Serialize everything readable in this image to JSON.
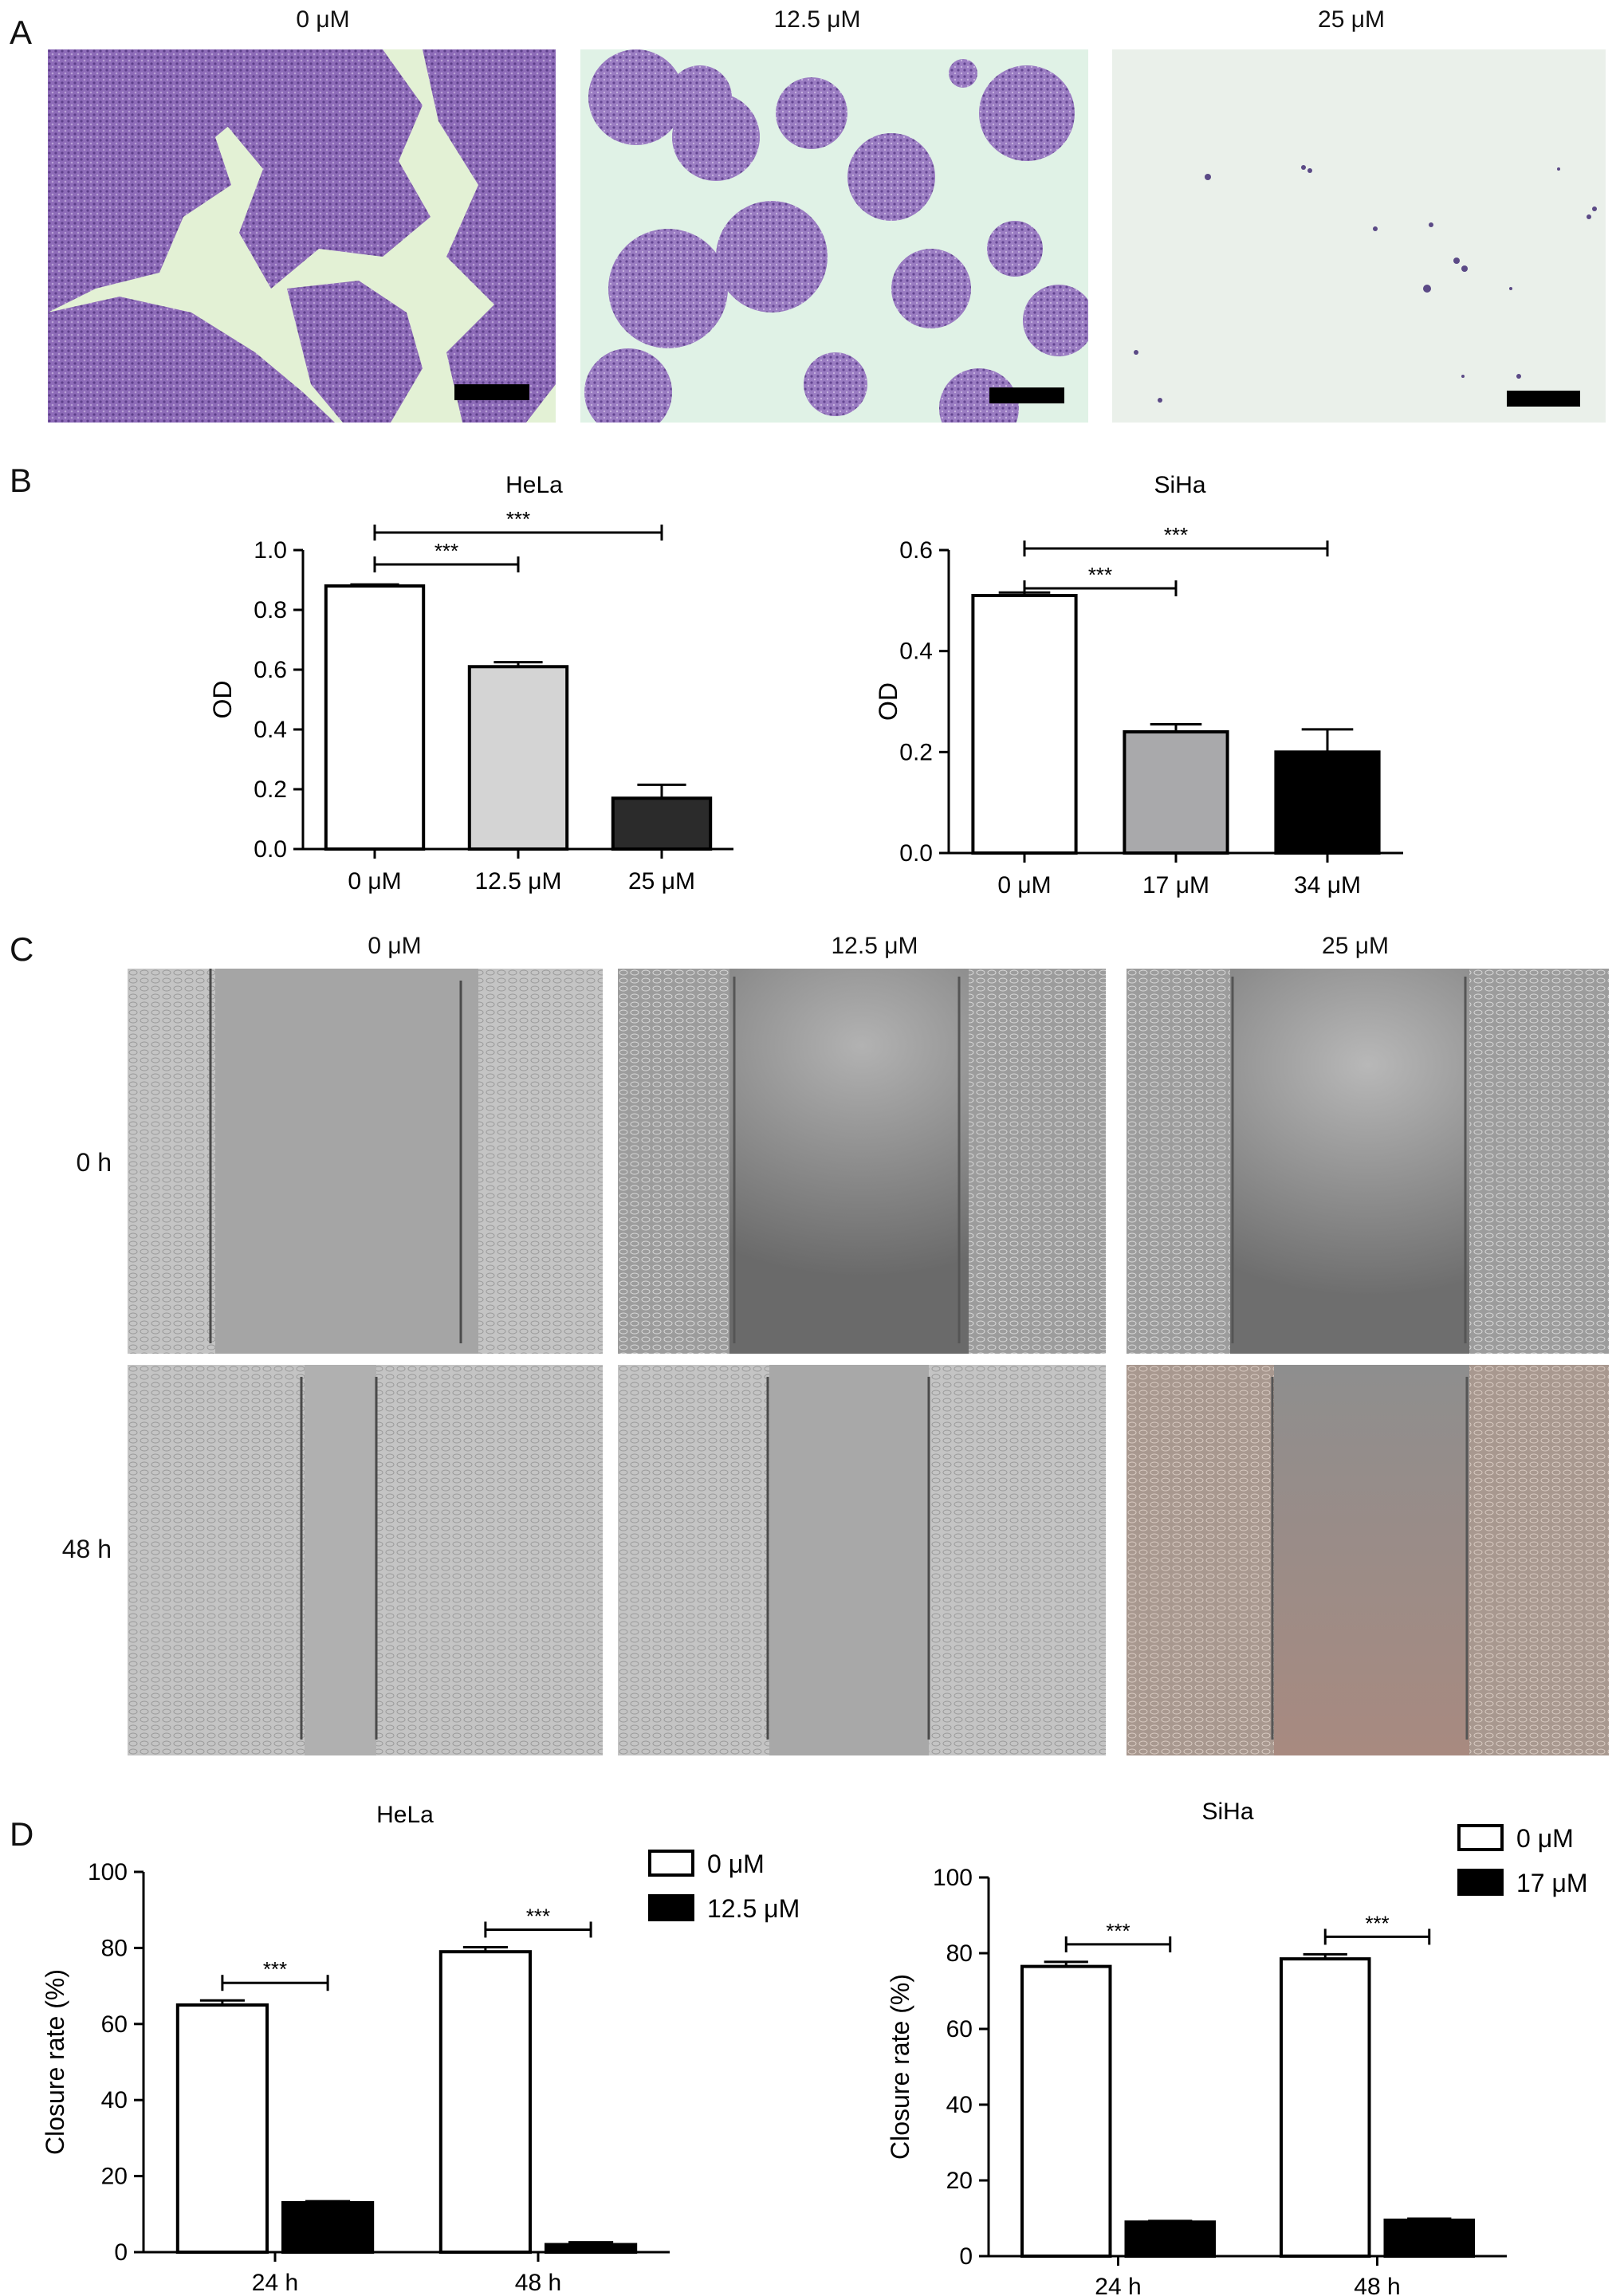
{
  "figure": {
    "panels": {
      "A": "A",
      "B": "B",
      "C": "C",
      "D": "D"
    },
    "panelA": {
      "column_titles": [
        "0 μM",
        "12.5 μM",
        "25 μM"
      ]
    },
    "panelC": {
      "column_titles": [
        "0 μM",
        "12.5 μM",
        "25 μM"
      ],
      "row_labels": [
        "0 h",
        "48 h"
      ]
    }
  },
  "colors": {
    "crystal_violet": "#7a5aa6",
    "background_green": "#dff0d4",
    "phase_gray": "#8c8c8c",
    "bar_white": "#ffffff",
    "bar_light_gray": "#d4d4d4",
    "bar_mid_gray": "#a9a9ab",
    "bar_dark": "#2b2b2b",
    "bar_black": "#000000"
  },
  "chart_data": [
    {
      "id": "B-HeLa",
      "type": "bar",
      "title": "HeLa",
      "ylabel": "OD",
      "categories": [
        "0 μM",
        "12.5 μM",
        "25 μM"
      ],
      "values": [
        0.88,
        0.61,
        0.17
      ],
      "errors": [
        0.005,
        0.015,
        0.045
      ],
      "colors": [
        "#ffffff",
        "#d4d4d4",
        "#2b2b2b"
      ],
      "ylim": [
        0,
        1.0
      ],
      "yticks": [
        "0.0",
        "0.2",
        "0.4",
        "0.6",
        "0.8",
        "1.0"
      ],
      "significance": [
        {
          "from": 0,
          "to": 1,
          "label": "***"
        },
        {
          "from": 0,
          "to": 2,
          "label": "***"
        }
      ]
    },
    {
      "id": "B-SiHa",
      "type": "bar",
      "title": "SiHa",
      "ylabel": "OD",
      "categories": [
        "0 μM",
        "17 μM",
        "34 μM"
      ],
      "values": [
        0.51,
        0.24,
        0.2
      ],
      "errors": [
        0.006,
        0.015,
        0.045
      ],
      "colors": [
        "#ffffff",
        "#a9a9ab",
        "#000000"
      ],
      "ylim": [
        0,
        0.6
      ],
      "yticks": [
        "0.0",
        "0.2",
        "0.4",
        "0.6"
      ],
      "significance": [
        {
          "from": 0,
          "to": 1,
          "label": "***"
        },
        {
          "from": 0,
          "to": 2,
          "label": "***"
        }
      ]
    },
    {
      "id": "D-HeLa",
      "type": "bar",
      "title": "HeLa",
      "ylabel": "Closure rate (%)",
      "categories": [
        "24 h",
        "48 h"
      ],
      "series": [
        {
          "name": "0 μM",
          "values": [
            65,
            79
          ],
          "errors": [
            1.2,
            1.2
          ],
          "color": "#ffffff"
        },
        {
          "name": "12.5 μM",
          "values": [
            13,
            2
          ],
          "errors": [
            0.4,
            0.6
          ],
          "color": "#000000"
        }
      ],
      "ylim": [
        0,
        100
      ],
      "yticks": [
        "0",
        "20",
        "40",
        "60",
        "80",
        "100"
      ],
      "legend": "top-right",
      "significance": [
        {
          "group": 0,
          "label": "***"
        },
        {
          "group": 1,
          "label": "***"
        }
      ]
    },
    {
      "id": "D-SiHa",
      "type": "bar",
      "title": "SiHa",
      "ylabel": "Closure rate (%)",
      "categories": [
        "24 h",
        "48 h"
      ],
      "series": [
        {
          "name": "0 μM",
          "values": [
            76.5,
            78.5
          ],
          "errors": [
            1.2,
            1.2
          ],
          "color": "#ffffff"
        },
        {
          "name": "17 μM",
          "values": [
            9,
            9.5
          ],
          "errors": [
            0.3,
            0.4
          ],
          "color": "#000000"
        }
      ],
      "ylim": [
        0,
        100
      ],
      "yticks": [
        "0",
        "20",
        "40",
        "60",
        "80",
        "100"
      ],
      "legend": "top-right",
      "significance": [
        {
          "group": 0,
          "label": "***"
        },
        {
          "group": 1,
          "label": "***"
        }
      ]
    }
  ]
}
